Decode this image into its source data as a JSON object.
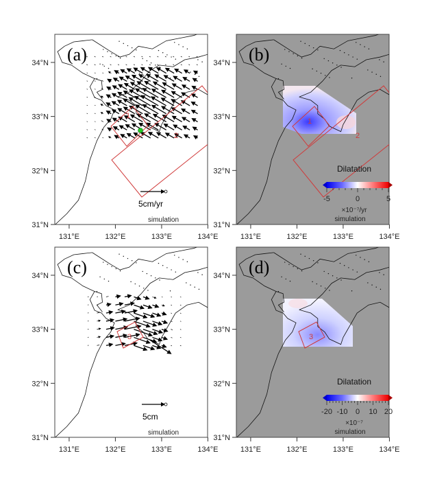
{
  "axes": {
    "lat_ticks": [
      "31°N",
      "32°N",
      "33°N",
      "34°N"
    ],
    "lon_ticks": [
      "131°E",
      "132°E",
      "133°E",
      "134°E"
    ]
  },
  "colors": {
    "box": "#d03a3a",
    "land_bg": "#ffffff",
    "sea_bg_dilatation": "#9b9b9b",
    "station": "#22cc22",
    "cmap_low": "#0000ff",
    "cmap_high": "#ff0000"
  },
  "panels": {
    "a": {
      "label": "(a)",
      "box_labels": [
        "1",
        "2"
      ],
      "scale_label": "5cm/yr",
      "note": "simulation"
    },
    "b": {
      "label": "(b)",
      "box_labels": [
        "1",
        "2"
      ],
      "colorbar_title": "Dilatation",
      "colorbar_ticks": [
        "-5",
        "0",
        "5"
      ],
      "colorbar_unit": "×10⁻⁷/yr",
      "note": "simulation"
    },
    "c": {
      "label": "(c)",
      "box_labels": [
        "3"
      ],
      "scale_label": "5cm",
      "note": "simulation"
    },
    "d": {
      "label": "(d)",
      "box_labels": [
        "3"
      ],
      "colorbar_title": "Dilatation",
      "colorbar_ticks": [
        "-20",
        "-10",
        "0",
        "10",
        "20"
      ],
      "colorbar_unit": "×10⁻⁷",
      "note": "simulation"
    }
  }
}
